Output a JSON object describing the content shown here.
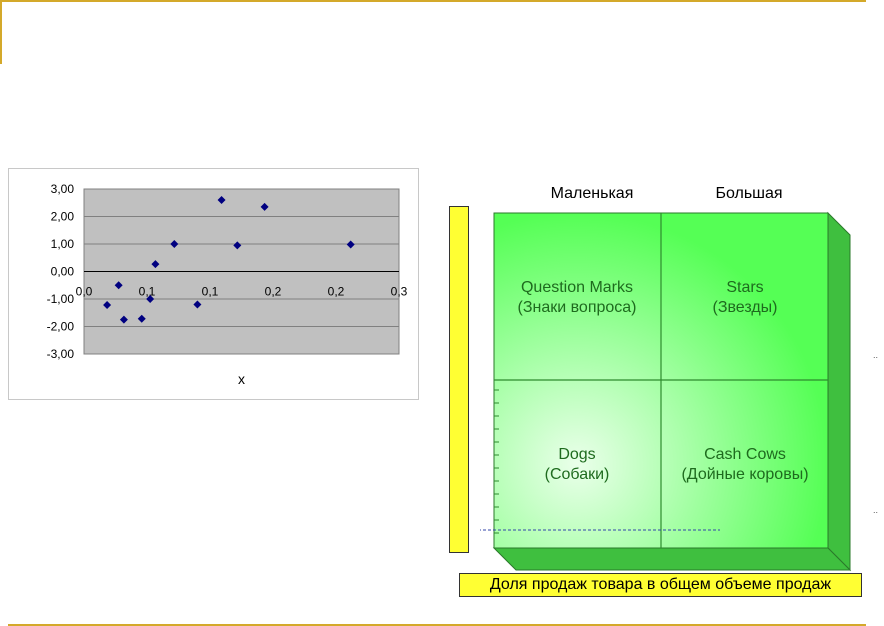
{
  "chart_data": {
    "type": "scatter",
    "title": "",
    "xlabel": "x",
    "ylabel": "",
    "xlim": [
      0,
      0.3
    ],
    "ylim": [
      -3,
      3
    ],
    "x_tick_labels": [
      "0,0",
      "0,1",
      "0,1",
      "0,2",
      "0,2",
      "0,3"
    ],
    "y_tick_labels": [
      "3,00",
      "2,00",
      "1,00",
      "0,00",
      "-1,00",
      "-2,00",
      "-3,00"
    ],
    "grid": true,
    "marker_color": "#000080",
    "plot_background": "#c0c0c0",
    "points": [
      {
        "x": 0.022,
        "y": -1.22
      },
      {
        "x": 0.033,
        "y": -0.5
      },
      {
        "x": 0.038,
        "y": -1.75
      },
      {
        "x": 0.055,
        "y": -1.72
      },
      {
        "x": 0.063,
        "y": -1.0
      },
      {
        "x": 0.068,
        "y": 0.27
      },
      {
        "x": 0.086,
        "y": 1.0
      },
      {
        "x": 0.108,
        "y": -1.2
      },
      {
        "x": 0.131,
        "y": 2.6
      },
      {
        "x": 0.146,
        "y": 0.95
      },
      {
        "x": 0.172,
        "y": 2.35
      },
      {
        "x": 0.254,
        "y": 0.98
      }
    ]
  },
  "matrix": {
    "columns": [
      "Маленькая",
      "Большая"
    ],
    "quadrants": {
      "top_left": [
        "Question Marks",
        "(Знаки вопроса)"
      ],
      "top_right": [
        "Stars",
        "(Звезды)"
      ],
      "bottom_left": [
        "Dogs",
        "(Собаки)"
      ],
      "bottom_right": [
        "Cash Cows",
        "(Дойные коровы)"
      ]
    },
    "bottom_caption": "Доля продаж товара в общем объеме продаж",
    "colors": {
      "face": "#55ff55",
      "side": "#3fbf3f",
      "highlight": "#eaffea",
      "label": "#1e6b1e",
      "caption_bg": "#ffff33"
    }
  }
}
